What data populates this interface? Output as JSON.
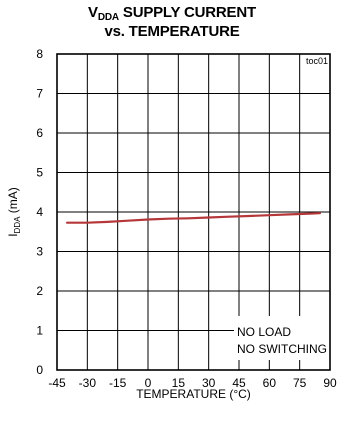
{
  "chart_data": {
    "type": "line",
    "title_line1_main": "V",
    "title_line1_subscript": "DDA",
    "title_line1_rest": " SUPPLY CURRENT",
    "title_line2": "vs. TEMPERATURE",
    "figure_id": "toc01",
    "xlabel": "TEMPERATURE (°C)",
    "ylabel_main": "I",
    "ylabel_subscript": "DDA",
    "ylabel_rest": " (mA)",
    "xlim": [
      -45,
      90
    ],
    "ylim": [
      0,
      8
    ],
    "x_ticks": [
      -45,
      -30,
      -15,
      0,
      15,
      30,
      45,
      60,
      75,
      90
    ],
    "y_ticks": [
      0,
      1,
      2,
      3,
      4,
      5,
      6,
      7,
      8
    ],
    "grid": true,
    "annotation": [
      "NO LOAD",
      "NO SWITCHING"
    ],
    "series": [
      {
        "color": "#b5373a",
        "x": [
          -40,
          -30,
          -20,
          -10,
          0,
          10,
          20,
          30,
          40,
          50,
          60,
          70,
          80,
          85
        ],
        "y": [
          3.73,
          3.73,
          3.75,
          3.78,
          3.81,
          3.83,
          3.84,
          3.86,
          3.88,
          3.9,
          3.92,
          3.94,
          3.96,
          3.97
        ]
      }
    ]
  }
}
